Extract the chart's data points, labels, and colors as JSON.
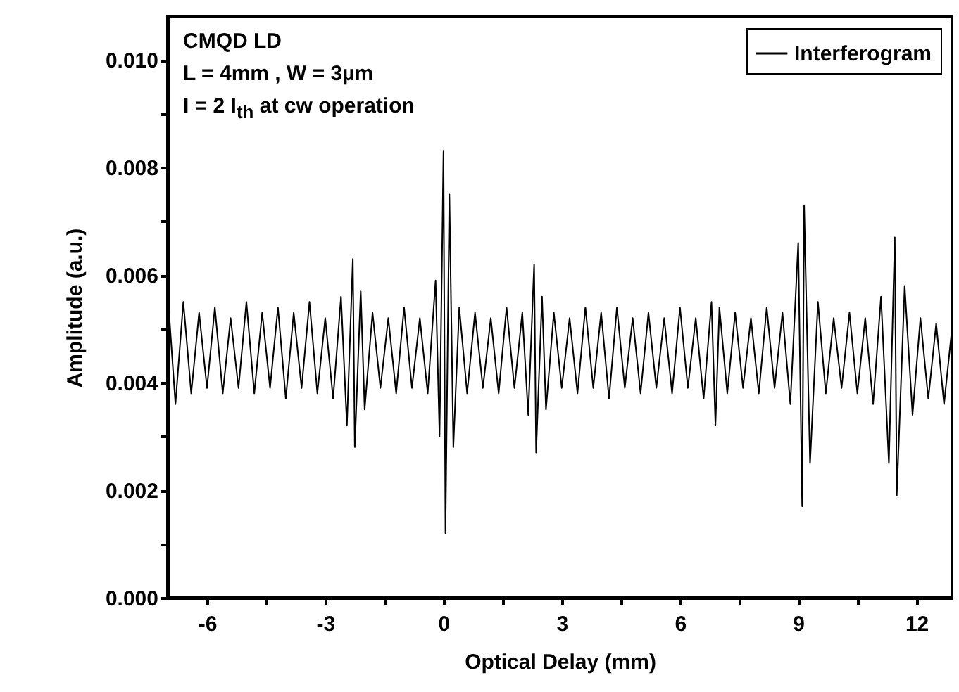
{
  "chart_data": {
    "type": "line",
    "xlabel": "Optical Delay (mm)",
    "ylabel": "Amplitude (a.u.)",
    "annotations": [
      "CMQD LD",
      "L = 4mm , W = 3µm",
      "I = 2 I$_{th}$ at cw operation"
    ],
    "xlim": [
      -7,
      12.9
    ],
    "ylim": [
      0,
      0.0108
    ],
    "xticks": [
      -6,
      {
        "value": -4.5,
        "label": null
      },
      -3,
      {
        "value": -1.5,
        "label": null
      },
      0,
      {
        "value": 1.5,
        "label": null
      },
      3,
      {
        "value": 4.5,
        "label": null
      },
      6,
      {
        "value": 7.5,
        "label": null
      },
      9,
      {
        "value": 10.5,
        "label": null
      },
      12
    ],
    "yticks": [
      {
        "value": 0,
        "label": "0.000"
      },
      {
        "value": 0.001,
        "label": null
      },
      {
        "value": 0.002,
        "label": "0.002"
      },
      {
        "value": 0.003,
        "label": null
      },
      {
        "value": 0.004,
        "label": "0.004"
      },
      {
        "value": 0.005,
        "label": null
      },
      {
        "value": 0.006,
        "label": "0.006"
      },
      {
        "value": 0.007,
        "label": null
      },
      {
        "value": 0.008,
        "label": "0.008"
      },
      {
        "value": 0.009,
        "label": null
      },
      {
        "value": 0.01,
        "label": "0.010"
      }
    ],
    "grid": false,
    "legend": "top right",
    "marker": "none",
    "line_style": "solid",
    "x": [
      -7.0,
      -6.8,
      -6.6,
      -6.4,
      -6.2,
      -6.0,
      -5.8,
      -5.6,
      -5.4,
      -5.2,
      -5.0,
      -4.8,
      -4.6,
      -4.4,
      -4.2,
      -4.0,
      -3.8,
      -3.6,
      -3.4,
      -3.2,
      -3.0,
      -2.8,
      -2.6,
      -2.45,
      -2.3,
      -2.25,
      -2.1,
      -2.0,
      -1.8,
      -1.6,
      -1.4,
      -1.2,
      -1.0,
      -0.8,
      -0.6,
      -0.4,
      -0.2,
      -0.1,
      0.0,
      0.05,
      0.15,
      0.25,
      0.4,
      0.6,
      0.8,
      1.0,
      1.2,
      1.4,
      1.6,
      1.8,
      2.0,
      2.15,
      2.3,
      2.35,
      2.5,
      2.6,
      2.8,
      3.0,
      3.2,
      3.4,
      3.6,
      3.8,
      4.0,
      4.2,
      4.4,
      4.6,
      4.8,
      5.0,
      5.2,
      5.4,
      5.6,
      5.8,
      6.0,
      6.2,
      6.4,
      6.6,
      6.8,
      6.9,
      7.0,
      7.2,
      7.4,
      7.6,
      7.8,
      8.0,
      8.2,
      8.4,
      8.6,
      8.8,
      9.0,
      9.1,
      9.15,
      9.3,
      9.5,
      9.7,
      9.9,
      10.1,
      10.3,
      10.5,
      10.7,
      10.9,
      11.1,
      11.3,
      11.45,
      11.5,
      11.7,
      11.9,
      12.1,
      12.3,
      12.5,
      12.7,
      12.9
    ],
    "series": [
      {
        "name": "Interferogram",
        "color": "#000000",
        "values": [
          0.0057,
          0.0036,
          0.0055,
          0.0038,
          0.0053,
          0.0039,
          0.0054,
          0.0038,
          0.0052,
          0.0039,
          0.0055,
          0.0038,
          0.0053,
          0.0039,
          0.0054,
          0.0037,
          0.0053,
          0.0039,
          0.0055,
          0.0038,
          0.0052,
          0.0037,
          0.0056,
          0.0032,
          0.0063,
          0.0028,
          0.0057,
          0.0035,
          0.0053,
          0.0039,
          0.0052,
          0.0038,
          0.0054,
          0.0039,
          0.0052,
          0.0038,
          0.0059,
          0.003,
          0.0083,
          0.0012,
          0.0075,
          0.0028,
          0.0054,
          0.0038,
          0.0053,
          0.0039,
          0.0052,
          0.0038,
          0.0054,
          0.0039,
          0.0053,
          0.0034,
          0.0062,
          0.0027,
          0.0056,
          0.0035,
          0.0053,
          0.0039,
          0.0052,
          0.0038,
          0.0054,
          0.0039,
          0.0053,
          0.0037,
          0.0054,
          0.0039,
          0.0052,
          0.0038,
          0.0053,
          0.0039,
          0.0052,
          0.0038,
          0.0054,
          0.0039,
          0.0052,
          0.0037,
          0.0055,
          0.0032,
          0.0054,
          0.0038,
          0.0053,
          0.0039,
          0.0052,
          0.0038,
          0.0054,
          0.0039,
          0.0053,
          0.0036,
          0.0066,
          0.0017,
          0.0073,
          0.0025,
          0.0055,
          0.0038,
          0.0052,
          0.0039,
          0.0053,
          0.0038,
          0.0052,
          0.0036,
          0.0056,
          0.0025,
          0.0067,
          0.0019,
          0.0058,
          0.0034,
          0.0052,
          0.0037,
          0.0051,
          0.0036,
          0.005
        ]
      }
    ]
  }
}
